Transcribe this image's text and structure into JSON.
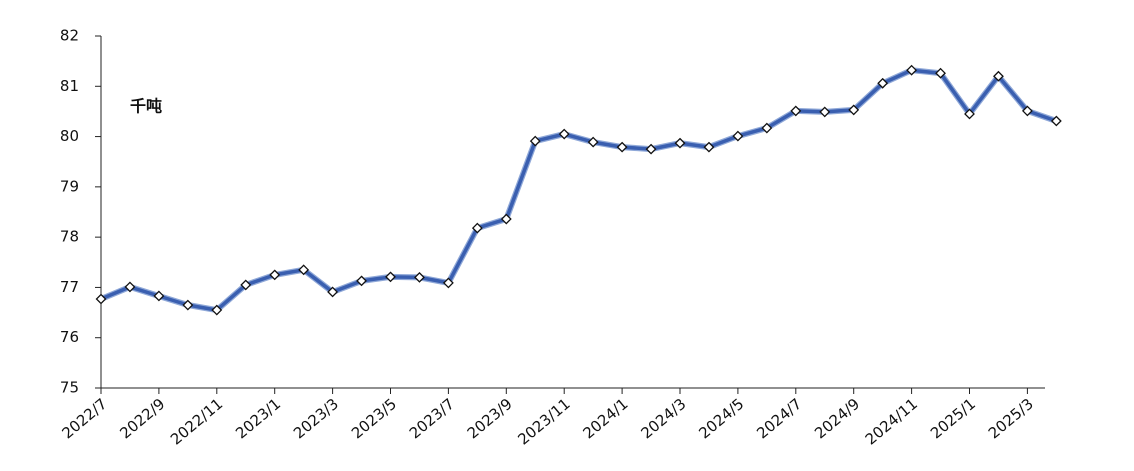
{
  "chart_data": {
    "type": "line",
    "annotation": "千吨",
    "categories": [
      "2022/7",
      null,
      "2022/9",
      null,
      "2022/11",
      null,
      "2023/1",
      null,
      "2023/3",
      null,
      "2023/5",
      null,
      "2023/7",
      null,
      "2023/9",
      null,
      "2023/11",
      null,
      "2024/1",
      null,
      "2024/3",
      null,
      "2024/5",
      null,
      "2024/7",
      null,
      "2024/9",
      null,
      "2024/11",
      null,
      "2025/1",
      null,
      "2025/3",
      null
    ],
    "series": [
      {
        "color": "#3a5fb0",
        "values": [
          76.77,
          77.01,
          76.83,
          76.65,
          76.55,
          77.05,
          77.25,
          77.35,
          76.91,
          77.13,
          77.21,
          77.2,
          77.09,
          78.18,
          78.36,
          79.91,
          80.05,
          79.89,
          79.79,
          79.75,
          79.87,
          79.79,
          80.01,
          80.17,
          80.51,
          80.49,
          80.53,
          81.06,
          81.32,
          81.26,
          80.45,
          81.2,
          80.51,
          80.31
        ]
      }
    ],
    "ylim": [
      75,
      82
    ],
    "yticks": [
      75,
      76,
      77,
      78,
      79,
      80,
      81,
      82
    ],
    "grid": false
  }
}
